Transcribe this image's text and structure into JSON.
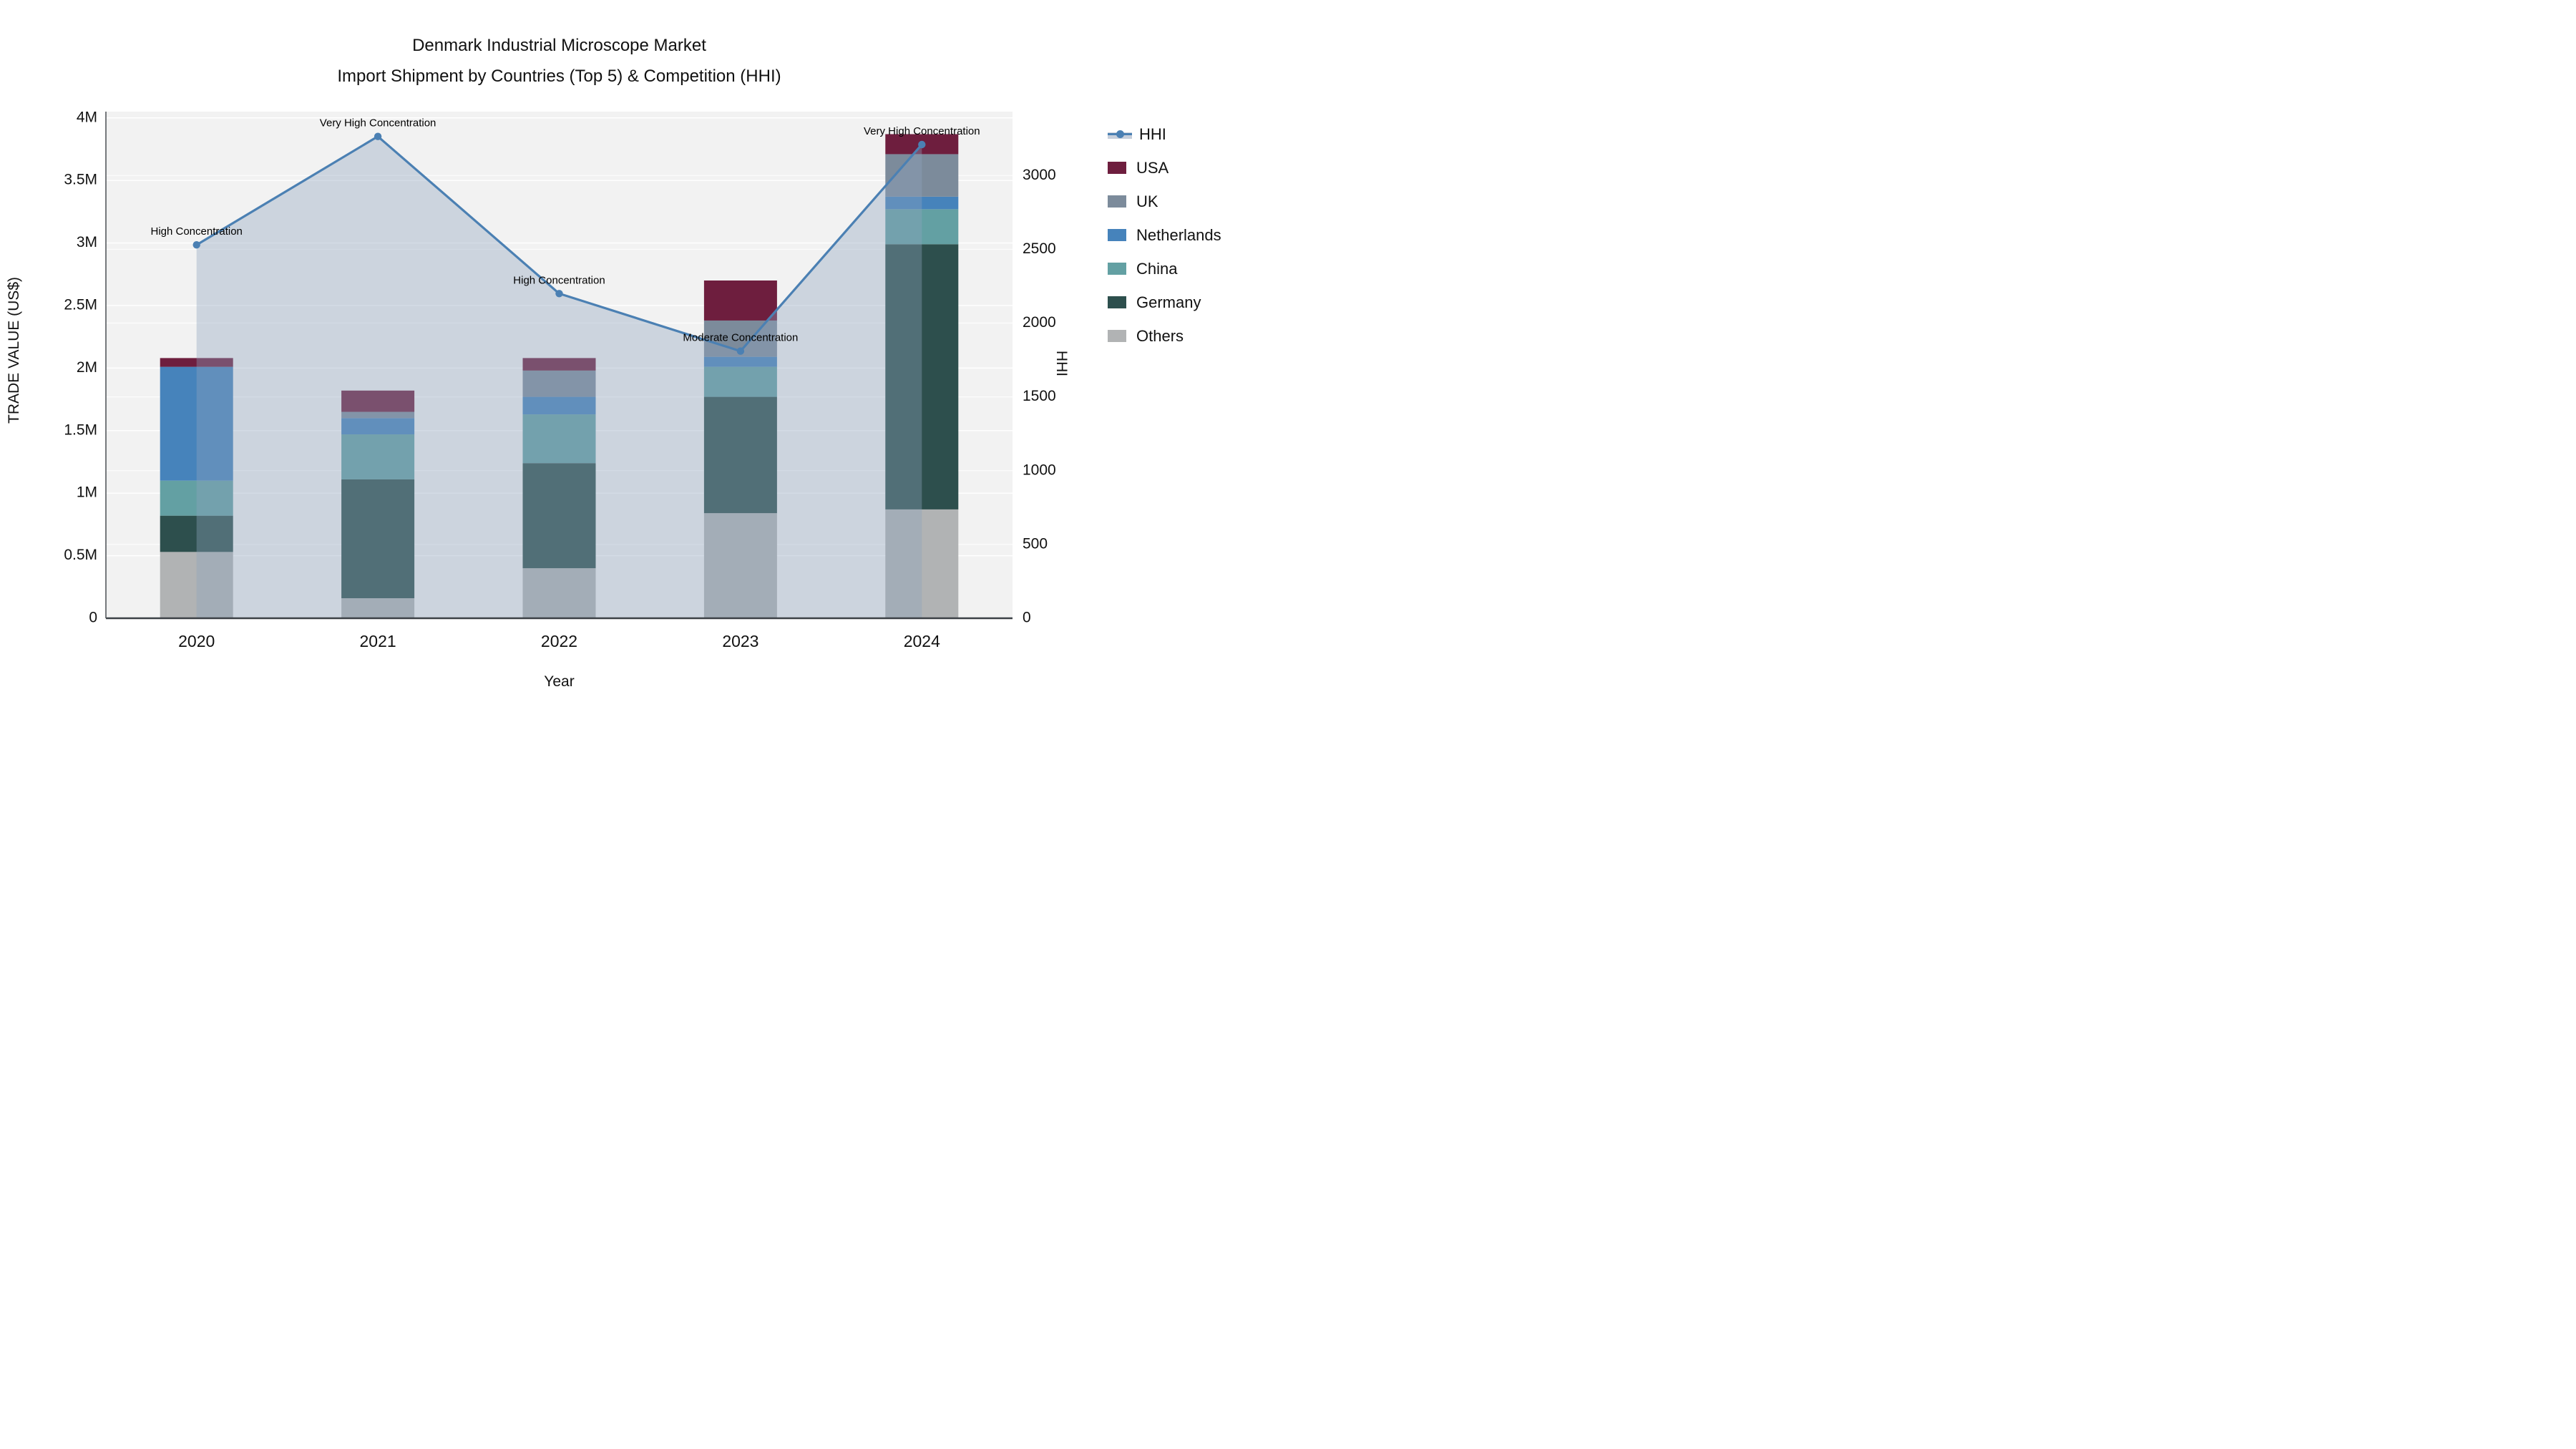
{
  "title": {
    "line1": "Denmark Industrial Microscope Market",
    "line2": "Import Shipment by Countries (Top 5) & Competition (HHI)"
  },
  "axes": {
    "x": {
      "title": "Year",
      "ticks": [
        "2020",
        "2021",
        "2022",
        "2023",
        "2024"
      ]
    },
    "y_left": {
      "title": "TRADE VALUE (US$)",
      "ticks": [
        "0",
        "0.5M",
        "1M",
        "1.5M",
        "2M",
        "2.5M",
        "3M",
        "3.5M",
        "4M"
      ],
      "tick_values_millions": [
        0,
        0.5,
        1,
        1.5,
        2,
        2.5,
        3,
        3.5,
        4
      ]
    },
    "y_right": {
      "title": "HHI",
      "ticks": [
        "0",
        "500",
        "1000",
        "1500",
        "2000",
        "2500",
        "3000"
      ],
      "tick_values": [
        0,
        500,
        1000,
        1500,
        2000,
        2500,
        3000
      ]
    }
  },
  "chart_data": {
    "type": "bar+line",
    "title": "Denmark Industrial Microscope Market — Import Shipment by Countries (Top 5) & Competition (HHI)",
    "xlabel": "Year",
    "ylabel": "TRADE VALUE (US$)",
    "y2label": "HHI",
    "categories": [
      "2020",
      "2021",
      "2022",
      "2023",
      "2024"
    ],
    "ylim_millions": [
      0,
      4.05
    ],
    "y2lim": [
      0,
      3433
    ],
    "grid": true,
    "legend_position": "right",
    "plot_background": "#f2f2f2",
    "grid_color": "#ffffff",
    "stack_order": [
      "Others",
      "Germany",
      "China",
      "Netherlands",
      "UK",
      "USA"
    ],
    "series": [
      {
        "name": "USA",
        "color": "#6e1e3e",
        "values_millions": [
          0.07,
          0.17,
          0.1,
          0.32,
          0.16
        ]
      },
      {
        "name": "UK",
        "color": "#7c8b9b",
        "values_millions": [
          0.0,
          0.05,
          0.21,
          0.29,
          0.34
        ]
      },
      {
        "name": "Netherlands",
        "color": "#4683bb",
        "values_millions": [
          0.91,
          0.13,
          0.14,
          0.08,
          0.1
        ]
      },
      {
        "name": "China",
        "color": "#63a0a3",
        "values_millions": [
          0.28,
          0.36,
          0.39,
          0.24,
          0.28
        ]
      },
      {
        "name": "Germany",
        "color": "#2d4f4d",
        "values_millions": [
          0.29,
          0.95,
          0.84,
          0.93,
          2.12
        ]
      },
      {
        "name": "Others",
        "color": "#b1b3b4",
        "values_millions": [
          0.53,
          0.16,
          0.4,
          0.84,
          0.87
        ]
      }
    ],
    "bar_totals_millions": [
      2.08,
      1.82,
      2.08,
      2.7,
      3.87
    ],
    "line_series": {
      "name": "HHI",
      "color": "#4b80b3",
      "area_fill": "rgba(141,162,190,0.38)",
      "values": [
        2530,
        3265,
        2200,
        1810,
        3210
      ]
    },
    "annotations": [
      {
        "x": "2020",
        "text": "High Concentration"
      },
      {
        "x": "2021",
        "text": "Very High Concentration"
      },
      {
        "x": "2022",
        "text": "High Concentration"
      },
      {
        "x": "2023",
        "text": "Moderate Concentration"
      },
      {
        "x": "2024",
        "text": "Very High Concentration"
      }
    ]
  },
  "legend": {
    "items": [
      {
        "label": "HHI",
        "type": "line",
        "color": "#4b80b3",
        "band": "#c6cedb"
      },
      {
        "label": "USA",
        "type": "swatch",
        "color": "#6e1e3e"
      },
      {
        "label": "UK",
        "type": "swatch",
        "color": "#7c8b9b"
      },
      {
        "label": "Netherlands",
        "type": "swatch",
        "color": "#4683bb"
      },
      {
        "label": "China",
        "type": "swatch",
        "color": "#63a0a3"
      },
      {
        "label": "Germany",
        "type": "swatch",
        "color": "#2d4f4d"
      },
      {
        "label": "Others",
        "type": "swatch",
        "color": "#b1b3b4"
      }
    ]
  }
}
